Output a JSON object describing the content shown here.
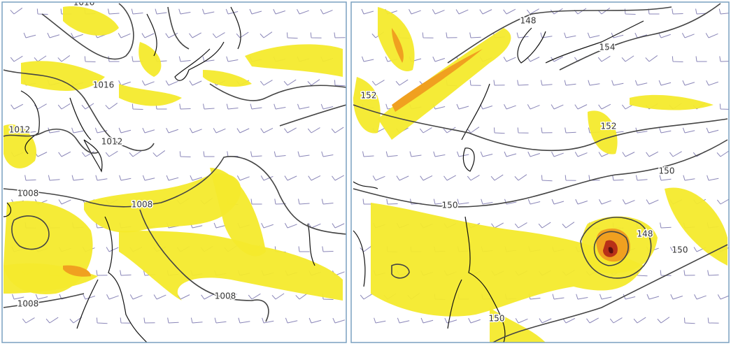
{
  "panels": [
    {
      "contour_labels": [
        "1016",
        "1016",
        "1012",
        "1012",
        "1008",
        "1008",
        "1008",
        "1008"
      ]
    },
    {
      "contour_labels": [
        "148",
        "154",
        "152",
        "152",
        "150",
        "150",
        "148",
        "150",
        "150"
      ]
    }
  ]
}
